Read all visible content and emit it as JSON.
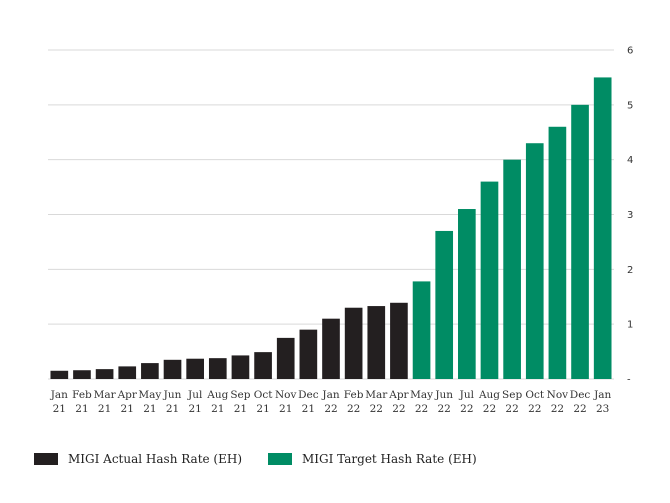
{
  "chart_data": {
    "type": "bar",
    "title": "",
    "xlabel": "",
    "ylabel": "",
    "ylim": [
      0,
      6
    ],
    "y_ticks": [
      "-",
      "1",
      "2",
      "3",
      "4",
      "5",
      "6"
    ],
    "y_axis_side": "right",
    "grid": true,
    "legend_position": "bottom-left",
    "categories": [
      {
        "month": "Jan",
        "year": "21"
      },
      {
        "month": "Feb",
        "year": "21"
      },
      {
        "month": "Mar",
        "year": "21"
      },
      {
        "month": "Apr",
        "year": "21"
      },
      {
        "month": "May",
        "year": "21"
      },
      {
        "month": "Jun",
        "year": "21"
      },
      {
        "month": "Jul",
        "year": "21"
      },
      {
        "month": "Aug",
        "year": "21"
      },
      {
        "month": "Sep",
        "year": "21"
      },
      {
        "month": "Oct",
        "year": "21"
      },
      {
        "month": "Nov",
        "year": "21"
      },
      {
        "month": "Dec",
        "year": "21"
      },
      {
        "month": "Jan",
        "year": "22"
      },
      {
        "month": "Feb",
        "year": "22"
      },
      {
        "month": "Mar",
        "year": "22"
      },
      {
        "month": "Apr",
        "year": "22"
      },
      {
        "month": "May",
        "year": "22"
      },
      {
        "month": "Jun",
        "year": "22"
      },
      {
        "month": "Jul",
        "year": "22"
      },
      {
        "month": "Aug",
        "year": "22"
      },
      {
        "month": "Sep",
        "year": "22"
      },
      {
        "month": "Oct",
        "year": "22"
      },
      {
        "month": "Nov",
        "year": "22"
      },
      {
        "month": "Dec",
        "year": "22"
      },
      {
        "month": "Jan",
        "year": "23"
      }
    ],
    "series": [
      {
        "name": "MIGI Actual Hash Rate (EH)",
        "color": "#231f20",
        "values": [
          0.15,
          0.16,
          0.18,
          0.23,
          0.29,
          0.35,
          0.37,
          0.38,
          0.43,
          0.49,
          0.75,
          0.9,
          1.1,
          1.3,
          1.33,
          1.39,
          null,
          null,
          null,
          null,
          null,
          null,
          null,
          null,
          null
        ]
      },
      {
        "name": "MIGI Target Hash Rate (EH)",
        "color": "#008c64",
        "values": [
          null,
          null,
          null,
          null,
          null,
          null,
          null,
          null,
          null,
          null,
          null,
          null,
          null,
          null,
          null,
          null,
          1.78,
          2.7,
          3.1,
          3.6,
          4.0,
          4.3,
          4.6,
          5.0,
          5.5
        ]
      }
    ]
  }
}
